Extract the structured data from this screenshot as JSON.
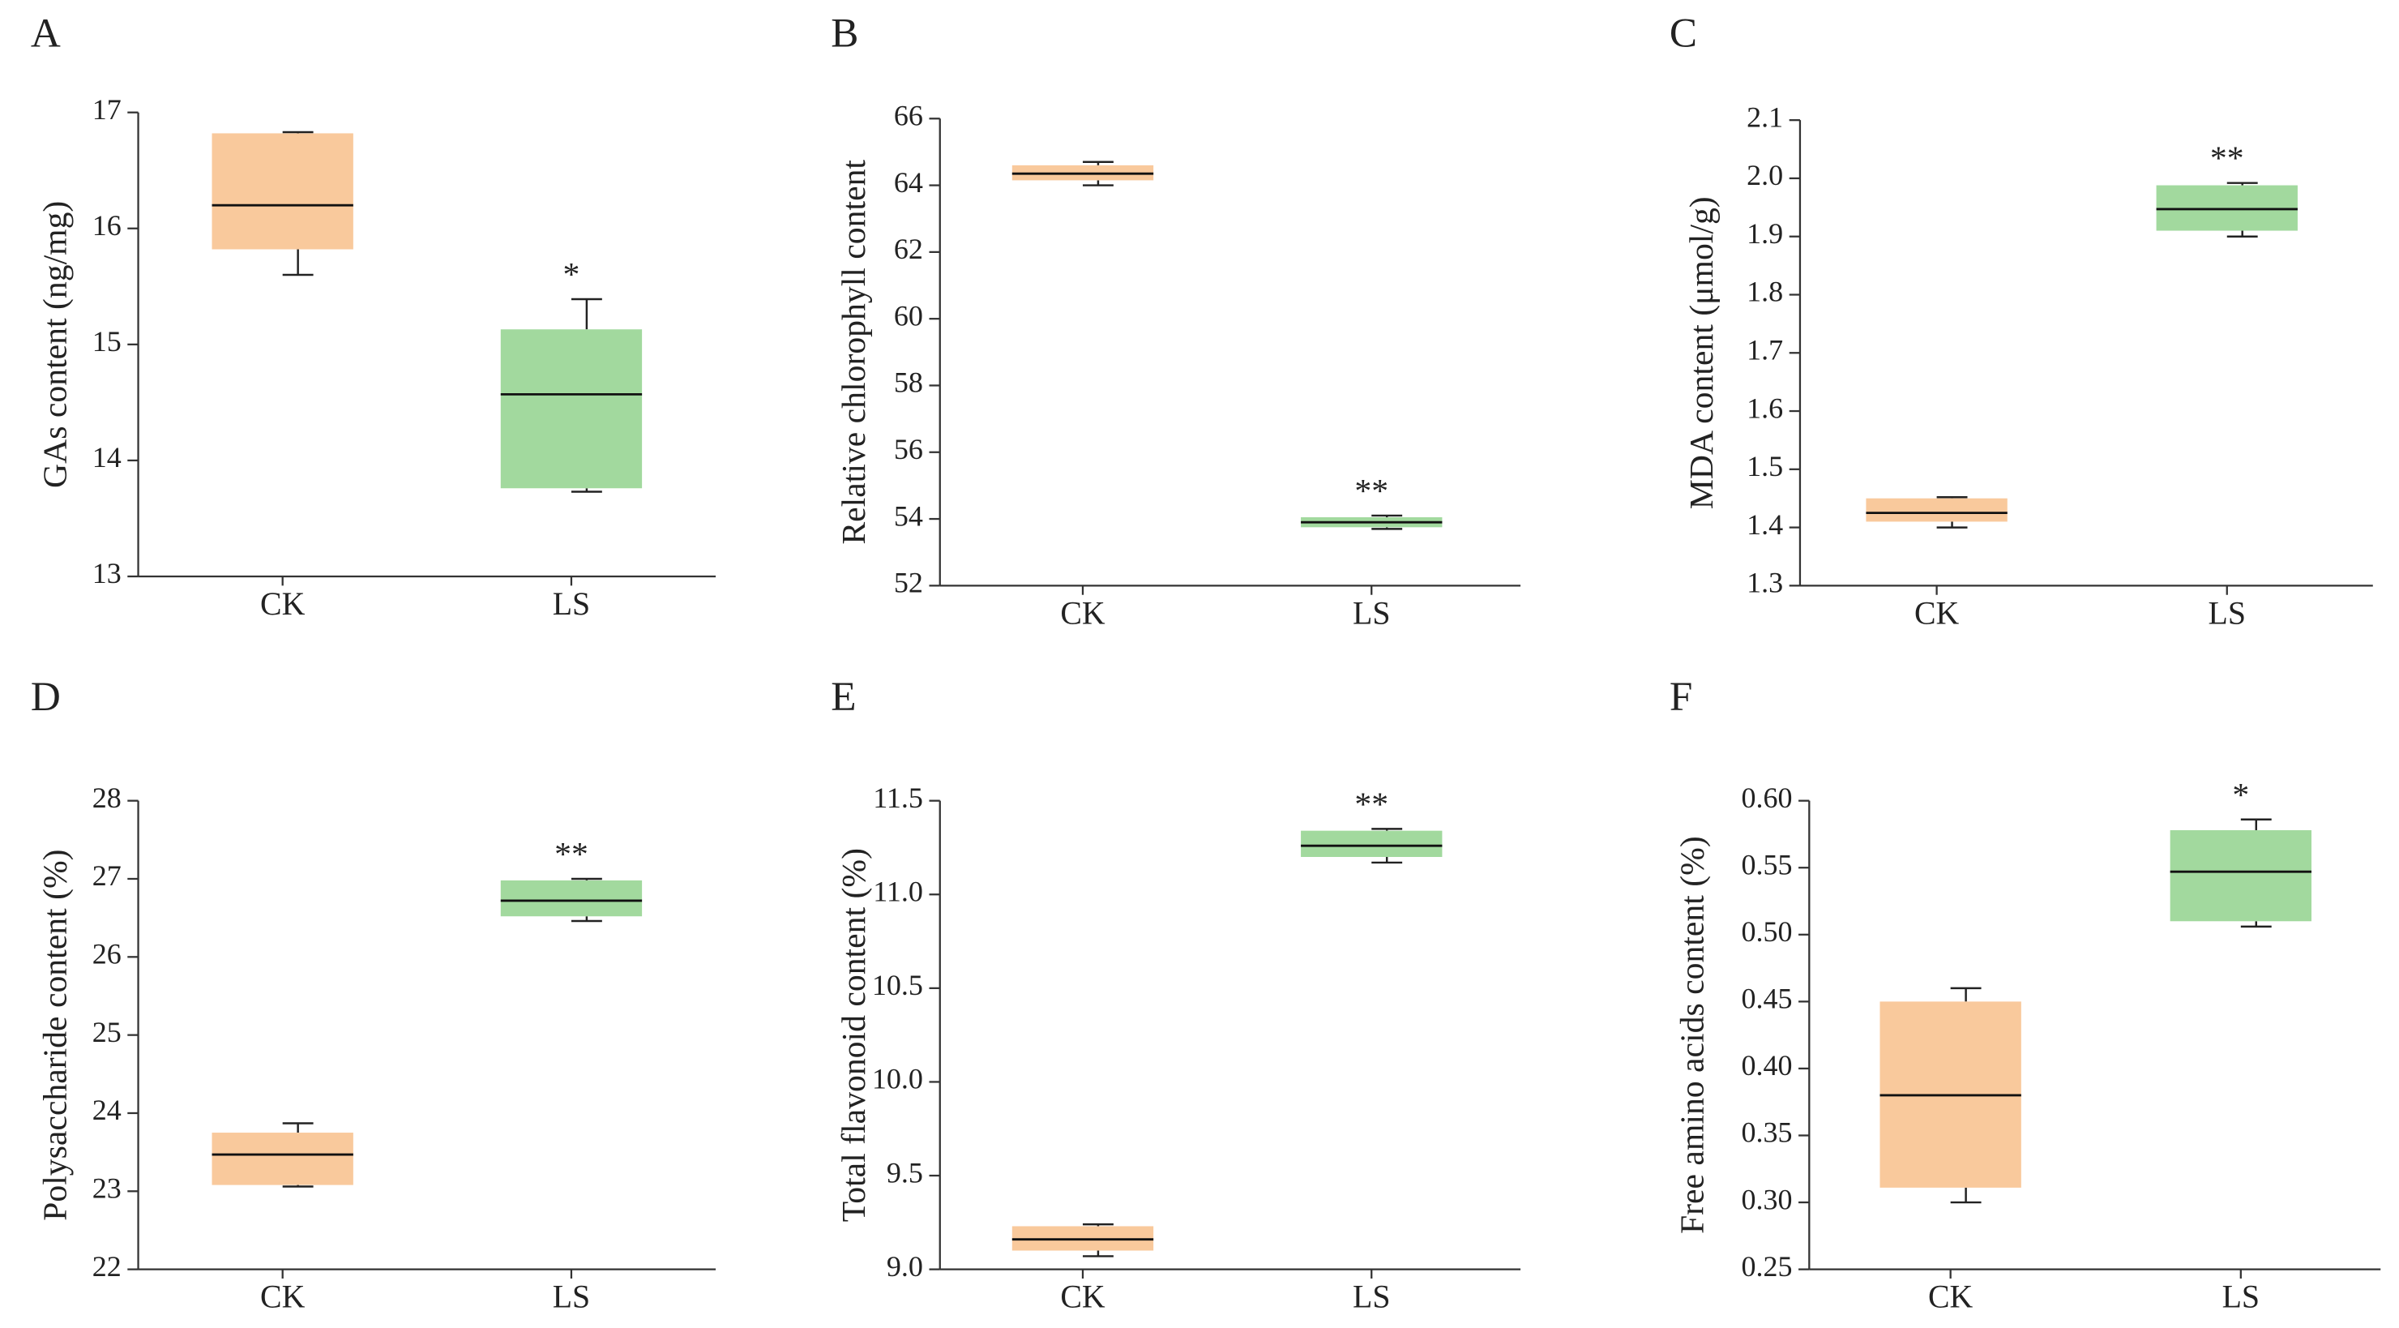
{
  "chart_data": [
    {
      "type": "box",
      "panel": "A",
      "ylabel": "GAs content (ng/mg)",
      "categories": [
        "CK",
        "LS"
      ],
      "ylim": [
        13,
        17
      ],
      "yticks": [
        13,
        14,
        15,
        16,
        17
      ],
      "boxes": [
        {
          "color": "#f9c99c",
          "whisker_low": 15.6,
          "q1": 15.82,
          "median": 16.2,
          "q3": 16.82,
          "whisker_high": 16.83
        },
        {
          "color": "#a2d99e",
          "whisker_low": 13.73,
          "q1": 13.76,
          "median": 14.57,
          "q3": 15.13,
          "whisker_high": 15.39,
          "annotation": "*"
        }
      ]
    },
    {
      "type": "box",
      "panel": "B",
      "ylabel": "Relative chlorophyll content",
      "categories": [
        "CK",
        "LS"
      ],
      "ylim": [
        52,
        66
      ],
      "yticks": [
        52,
        54,
        56,
        58,
        60,
        62,
        64,
        66
      ],
      "boxes": [
        {
          "color": "#f9c99c",
          "whisker_low": 64.0,
          "q1": 64.15,
          "median": 64.35,
          "q3": 64.6,
          "whisker_high": 64.7
        },
        {
          "color": "#a2d99e",
          "whisker_low": 53.7,
          "q1": 53.75,
          "median": 53.9,
          "q3": 54.05,
          "whisker_high": 54.1,
          "annotation": "**"
        }
      ]
    },
    {
      "type": "box",
      "panel": "C",
      "ylabel": "MDA content (μmol/g)",
      "categories": [
        "CK",
        "LS"
      ],
      "ylim": [
        1.3,
        2.1
      ],
      "yticks": [
        1.3,
        1.4,
        1.5,
        1.6,
        1.7,
        1.8,
        1.9,
        {
          "value": 2.0,
          "label": "2.0"
        },
        2.1
      ],
      "boxes": [
        {
          "color": "#f9c99c",
          "whisker_low": 1.4,
          "q1": 1.41,
          "median": 1.425,
          "q3": 1.45,
          "whisker_high": 1.452
        },
        {
          "color": "#a2d99e",
          "whisker_low": 1.9,
          "q1": 1.91,
          "median": 1.947,
          "q3": 1.988,
          "whisker_high": 1.992,
          "annotation": "**"
        }
      ]
    },
    {
      "type": "box",
      "panel": "D",
      "ylabel": "Polysaccharide content (%)",
      "categories": [
        "CK",
        "LS"
      ],
      "ylim": [
        22,
        28
      ],
      "yticks": [
        22,
        23,
        24,
        25,
        26,
        27,
        28
      ],
      "boxes": [
        {
          "color": "#f9c99c",
          "whisker_low": 23.06,
          "q1": 23.08,
          "median": 23.47,
          "q3": 23.75,
          "whisker_high": 23.87
        },
        {
          "color": "#a2d99e",
          "whisker_low": 26.46,
          "q1": 26.52,
          "median": 26.72,
          "q3": 26.98,
          "whisker_high": 27.0,
          "annotation": "**"
        }
      ]
    },
    {
      "type": "box",
      "panel": "E",
      "ylabel": "Total flavonoid content (%)",
      "categories": [
        "CK",
        "LS"
      ],
      "ylim": [
        9.0,
        11.5
      ],
      "yticks": [
        {
          "value": 9.0,
          "label": "9.0"
        },
        9.5,
        {
          "value": 10.0,
          "label": "10.0"
        },
        10.5,
        {
          "value": 11.0,
          "label": "11.0"
        },
        11.5
      ],
      "boxes": [
        {
          "color": "#f9c99c",
          "whisker_low": 9.07,
          "q1": 9.1,
          "median": 9.16,
          "q3": 9.23,
          "whisker_high": 9.24
        },
        {
          "color": "#a2d99e",
          "whisker_low": 11.17,
          "q1": 11.2,
          "median": 11.26,
          "q3": 11.34,
          "whisker_high": 11.35,
          "annotation": "**"
        }
      ]
    },
    {
      "type": "box",
      "panel": "F",
      "ylabel": "Free amino acids content (%)",
      "categories": [
        "CK",
        "LS"
      ],
      "ylim": [
        0.25,
        0.6
      ],
      "yticks": [
        0.25,
        {
          "value": 0.3,
          "label": "0.30"
        },
        0.35,
        {
          "value": 0.4,
          "label": "0.40"
        },
        0.45,
        {
          "value": 0.5,
          "label": "0.50"
        },
        0.55,
        {
          "value": 0.6,
          "label": "0.60"
        }
      ],
      "boxes": [
        {
          "color": "#f9c99c",
          "whisker_low": 0.3,
          "q1": 0.311,
          "median": 0.38,
          "q3": 0.45,
          "whisker_high": 0.46
        },
        {
          "color": "#a2d99e",
          "whisker_low": 0.506,
          "q1": 0.51,
          "median": 0.547,
          "q3": 0.578,
          "whisker_high": 0.586,
          "annotation": "*"
        }
      ]
    }
  ]
}
